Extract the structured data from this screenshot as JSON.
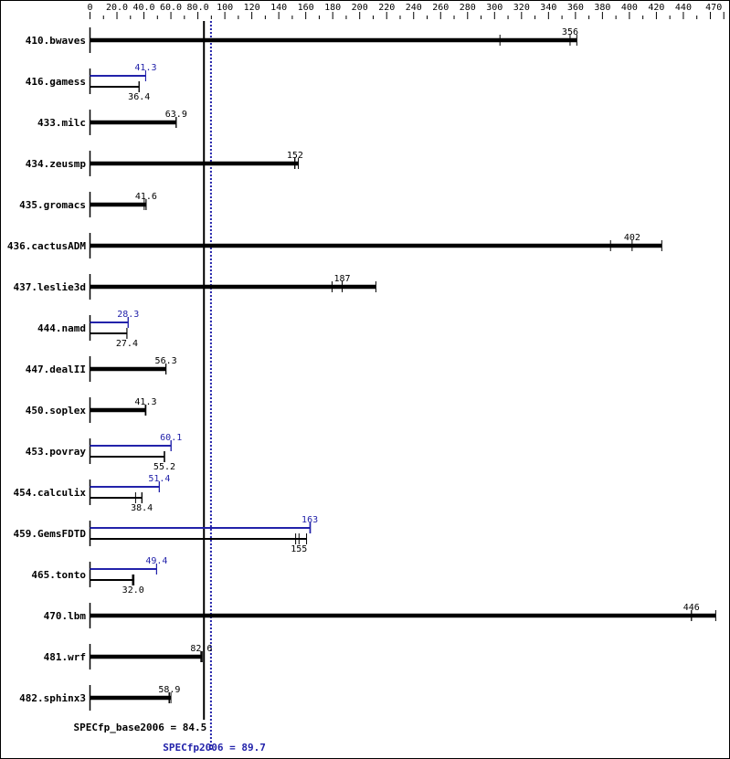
{
  "chart_data": {
    "type": "bar",
    "orientation": "horizontal",
    "xlim": [
      0,
      470
    ],
    "x_ticks": [
      "0",
      "20.0",
      "40.0",
      "60.0",
      "80.0",
      "100",
      "120",
      "140",
      "160",
      "180",
      "200",
      "220",
      "240",
      "260",
      "280",
      "300",
      "320",
      "340",
      "360",
      "380",
      "400",
      "420",
      "440",
      "470"
    ],
    "x_tick_values": [
      0,
      20,
      40,
      60,
      80,
      100,
      120,
      140,
      160,
      180,
      200,
      220,
      240,
      260,
      280,
      300,
      320,
      340,
      360,
      380,
      400,
      420,
      440,
      470
    ],
    "colors": {
      "base": "#000000",
      "peak": "#2222aa"
    },
    "benchmarks": [
      {
        "name": "410.bwaves",
        "base": {
          "label": "356",
          "runs": [
            304,
            356,
            361
          ]
        },
        "peak": null
      },
      {
        "name": "416.gamess",
        "base": {
          "label": "36.4",
          "runs": [
            36.4,
            36.4,
            36.4
          ]
        },
        "peak": {
          "label": "41.3",
          "runs": [
            41.3,
            41.3,
            41.3
          ]
        }
      },
      {
        "name": "433.milc",
        "base": {
          "label": "63.9",
          "runs": [
            63.9,
            63.9,
            63.9
          ]
        },
        "peak": null
      },
      {
        "name": "434.zeusmp",
        "base": {
          "label": "152",
          "runs": [
            151.8,
            152,
            154.5
          ]
        },
        "peak": null
      },
      {
        "name": "435.gromacs",
        "base": {
          "label": "41.6",
          "runs": [
            40.2,
            41.6,
            41.6
          ]
        },
        "peak": null
      },
      {
        "name": "436.cactusADM",
        "base": {
          "label": "402",
          "runs": [
            386,
            402,
            424
          ]
        },
        "peak": null
      },
      {
        "name": "437.leslie3d",
        "base": {
          "label": "187",
          "runs": [
            179.5,
            187,
            212
          ]
        },
        "peak": null
      },
      {
        "name": "444.namd",
        "base": {
          "label": "27.4",
          "runs": [
            27.4,
            27.4,
            27.4
          ]
        },
        "peak": {
          "label": "28.3",
          "runs": [
            28.3,
            28.3,
            28.3
          ]
        }
      },
      {
        "name": "447.dealII",
        "base": {
          "label": "56.3",
          "runs": [
            56.3,
            56.3,
            56.3
          ]
        },
        "peak": null
      },
      {
        "name": "450.soplex",
        "base": {
          "label": "41.3",
          "runs": [
            41.0,
            41.3,
            41.5
          ]
        },
        "peak": null
      },
      {
        "name": "453.povray",
        "base": {
          "label": "55.2",
          "runs": [
            55.0,
            55.2,
            55.4
          ]
        },
        "peak": {
          "label": "60.1",
          "runs": [
            60.1,
            60.1,
            60.1
          ]
        }
      },
      {
        "name": "454.calculix",
        "base": {
          "label": "38.4",
          "runs": [
            33.8,
            38.4,
            38.6
          ]
        },
        "peak": {
          "label": "51.4",
          "runs": [
            51.4,
            51.4,
            51.4
          ]
        }
      },
      {
        "name": "459.GemsFDTD",
        "base": {
          "label": "155",
          "runs": [
            152.5,
            155,
            160.6
          ]
        },
        "peak": {
          "label": "163",
          "runs": [
            163,
            163.3,
            163.5
          ]
        }
      },
      {
        "name": "465.tonto",
        "base": {
          "label": "32.0",
          "runs": [
            31.5,
            32.0,
            32.6
          ]
        },
        "peak": {
          "label": "49.4",
          "runs": [
            49.4,
            49.4,
            49.4
          ]
        }
      },
      {
        "name": "470.lbm",
        "base": {
          "label": "446",
          "runs": [
            446,
            446,
            464
          ]
        },
        "peak": null
      },
      {
        "name": "481.wrf",
        "base": {
          "label": "82.6",
          "runs": [
            82.2,
            82.6,
            83.2
          ]
        },
        "peak": null
      },
      {
        "name": "482.sphinx3",
        "base": {
          "label": "58.9",
          "runs": [
            58.6,
            58.9,
            60.0
          ]
        },
        "peak": null
      }
    ],
    "summary": {
      "base": {
        "label": "SPECfp_base2006 = 84.5",
        "value": 84.5
      },
      "peak": {
        "label": "SPECfp2006 = 89.7",
        "value": 89.7
      }
    }
  }
}
